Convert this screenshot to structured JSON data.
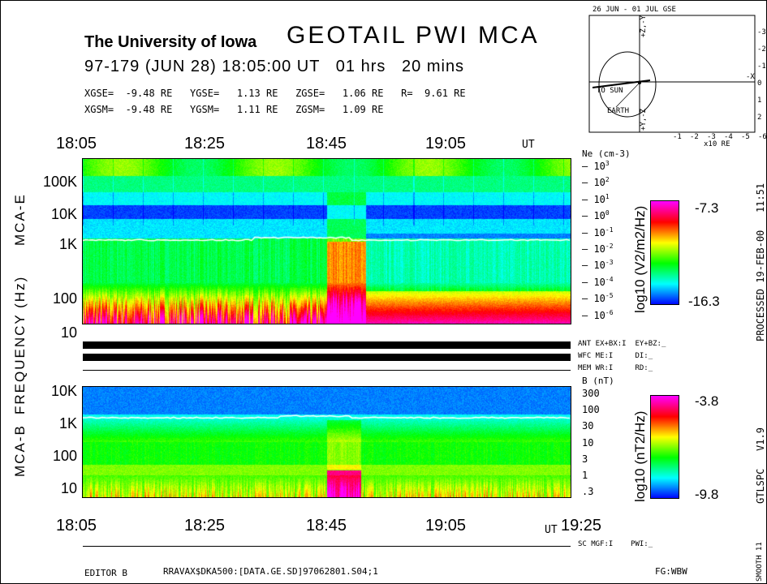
{
  "header": {
    "institution": "The University of Iowa",
    "title": "GEOTAIL PWI MCA",
    "date_line": "97-179 (JUN 28) 18:05:00 UT   01 hrs   20 mins",
    "gse_line": "XGSE=  -9.48 RE   YGSE=   1.13 RE   ZGSE=   1.06 RE   R=  9.61 RE",
    "gsm_line": "XGSM=  -9.48 RE   YGSM=   1.11 RE   ZGSM=   1.09 RE"
  },
  "orbit_plot": {
    "title": "26 JUN - 01 JUL  GSE",
    "x_ticks": [
      "-1",
      "-2",
      "-3",
      "-4",
      "-5",
      "-6"
    ],
    "x_unit": "x10 RE",
    "y_ticks": [
      "-3",
      "-2",
      "-1",
      "0",
      "1",
      "2"
    ],
    "labels": {
      "to_sun": "TO SUN",
      "earth": "EARTH",
      "minus_x": "-X",
      "z_top": "+Z,-Y",
      "y_bottom": "+Y,-Z"
    }
  },
  "chart_data": [
    {
      "type": "heatmap",
      "panel": "MCA-E",
      "x_tick_labels": [
        "18:05",
        "18:25",
        "18:45",
        "19:05"
      ],
      "x_unit_label": "UT",
      "y_tick_labels": [
        "100K",
        "10K",
        "1K",
        "100",
        "10"
      ],
      "ylabel": "FREQUENCY (Hz)",
      "scale": "log",
      "right_axis": {
        "label": "Ne (cm-3)",
        "ticks": [
          "10^3",
          "10^2",
          "10^1",
          "10^0",
          "10^-1",
          "10^-2",
          "10^-3",
          "10^-4",
          "10^-5",
          "10^-6"
        ]
      },
      "colorbar": {
        "label": "log10 (V2/m2/Hz)",
        "max": "-7.3",
        "min": "-16.3"
      }
    },
    {
      "type": "heatmap",
      "panel": "MCA-B",
      "x_tick_labels": [
        "18:05",
        "18:25",
        "18:45",
        "19:05",
        "19:25"
      ],
      "x_unit_label": "UT",
      "y_tick_labels": [
        "10K",
        "1K",
        "100",
        "10"
      ],
      "scale": "log",
      "right_axis": {
        "label": "B (nT)",
        "ticks": [
          "300",
          "100",
          "30",
          "10",
          "3",
          "1",
          ".3"
        ]
      },
      "colorbar": {
        "label": "log10 (nT2/Hz)",
        "max": "-3.8",
        "min": "-9.8"
      }
    }
  ],
  "status": {
    "ant": "ANT EX+BX:I  EY+BZ:_",
    "wfc": "WFC ME:I     DI:_",
    "mem": "MEM WR:I     RD:_",
    "sc": "SC MGF:I    PWI:_"
  },
  "footer": {
    "editor": "EDITOR B",
    "file": "RRAVAX$DKA500:[DATA.GE.SD]97062801.S04;1",
    "fg": "FG:WBW"
  },
  "side": {
    "processed": "PROCESSED 19-FEB-00   11:51",
    "version": "GTLSPC   V1.9",
    "smooth": "SMOOTH 11"
  },
  "colors": {
    "background": "#ffffff",
    "text": "#000000",
    "colormap": [
      "#0000ff",
      "#00ffff",
      "#00ff00",
      "#ffff00",
      "#ff0000",
      "#ff00ff"
    ]
  }
}
